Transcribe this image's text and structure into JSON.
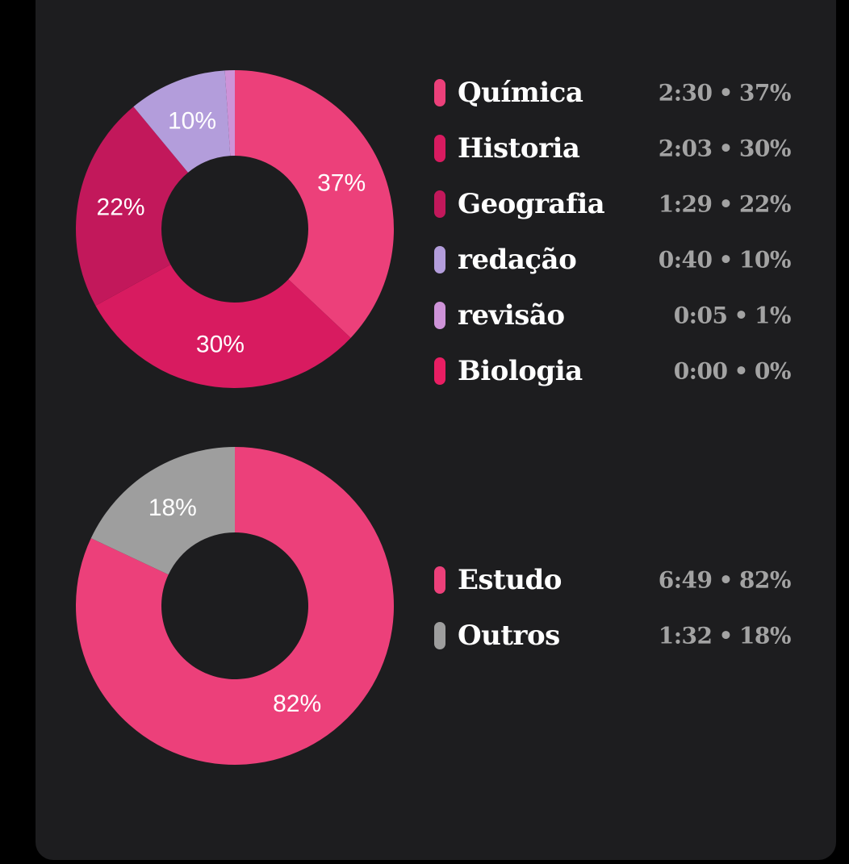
{
  "chart_data": [
    {
      "type": "pie",
      "slices": [
        {
          "name": "Química",
          "percent": 37,
          "time": "2:30",
          "color": "#ec407a"
        },
        {
          "name": "Historia",
          "percent": 30,
          "time": "2:03",
          "color": "#d81b60"
        },
        {
          "name": "Geografia",
          "percent": 22,
          "time": "1:29",
          "color": "#c2185b"
        },
        {
          "name": "redação",
          "percent": 10,
          "time": "0:40",
          "color": "#b39ddb"
        },
        {
          "name": "revisão",
          "percent": 1,
          "time": "0:05",
          "color": "#ce93d8"
        },
        {
          "name": "Biologia",
          "percent": 0,
          "time": "0:00",
          "color": "#e91e63"
        }
      ]
    },
    {
      "type": "pie",
      "slices": [
        {
          "name": "Estudo",
          "percent": 82,
          "time": "6:49",
          "color": "#ec407a"
        },
        {
          "name": "Outros",
          "percent": 18,
          "time": "1:32",
          "color": "#9e9e9e"
        }
      ]
    }
  ],
  "legend_separator": "•",
  "colors": {
    "card_background": "#1d1d1f",
    "legend_label": "#ffffff",
    "legend_value": "#a3a3a3",
    "slice_label": "#ffffff"
  }
}
